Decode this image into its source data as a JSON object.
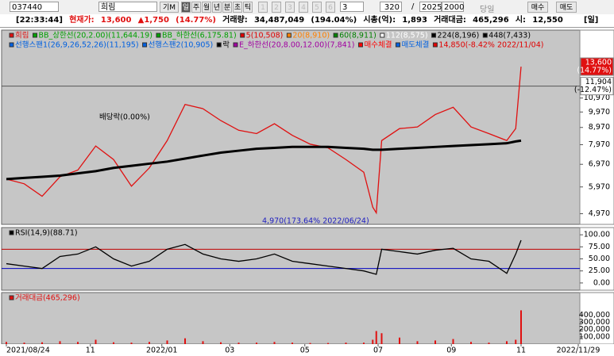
{
  "toolbar": {
    "code": "037440",
    "name": "희림",
    "chart_mode": "기M",
    "periods": [
      "일",
      "주",
      "월",
      "년",
      "분",
      "초",
      "틱"
    ],
    "slots": [
      "1",
      "2",
      "3",
      "4",
      "5",
      "6",
      "3"
    ],
    "count": "320",
    "range_sep": "/",
    "range": "2025",
    "zoom": "2000",
    "today": "당일",
    "buy": "매수",
    "sell": "매도"
  },
  "info": {
    "time": "[22:33:44]",
    "price_label": "현재가:",
    "price": "13,600",
    "change": "▲1,750",
    "change_pct": "(14.77%)",
    "volume_label": "거래량:",
    "volume": "34,487,049",
    "volume_pct": "(194.04%)",
    "cap_label": "시총(억):",
    "cap": "1,893",
    "amount_label": "거래대금:",
    "amount": "465,296",
    "open_label": "시:",
    "open": "12,550",
    "period": "[일]"
  },
  "chart_data": [
    {
      "type": "line",
      "scale": "log",
      "x": [
        0,
        10,
        20,
        30,
        40,
        50,
        60,
        70,
        80,
        90,
        100,
        110,
        120,
        130,
        140,
        150,
        160,
        170,
        180,
        190,
        200,
        205,
        207,
        210,
        220,
        230,
        240,
        250,
        260,
        270,
        280,
        285,
        288
      ],
      "xlim": [
        0,
        320
      ],
      "xticks": [
        {
          "value": 0,
          "label": "2021/08/24"
        },
        {
          "value": 47,
          "label": "11"
        },
        {
          "value": 87,
          "label": "2022/01"
        },
        {
          "value": 125,
          "label": "03"
        },
        {
          "value": 167,
          "label": "05"
        },
        {
          "value": 208,
          "label": "07"
        },
        {
          "value": 249,
          "label": "09"
        },
        {
          "value": 288,
          "label": "11"
        },
        {
          "value": 320,
          "label": "2022/11/29"
        }
      ],
      "series": [
        {
          "name": "희림",
          "color": "#e01010",
          "values": [
            6300,
            6100,
            5600,
            6400,
            6700,
            7900,
            7200,
            6000,
            6800,
            8200,
            10500,
            10200,
            9400,
            8800,
            8600,
            9200,
            8500,
            8000,
            7800,
            7200,
            6600,
            5200,
            5000,
            8200,
            8900,
            9000,
            9800,
            10300,
            9000,
            8600,
            8200,
            8900,
            13600
          ]
        },
        {
          "name": "224(8,196)",
          "color": "#000000",
          "values": [
            6300,
            6350,
            6400,
            6450,
            6550,
            6650,
            6800,
            6900,
            7000,
            7100,
            7250,
            7400,
            7550,
            7650,
            7750,
            7800,
            7850,
            7850,
            7850,
            7800,
            7750,
            7700,
            7700,
            7700,
            7750,
            7800,
            7850,
            7900,
            7950,
            8000,
            8050,
            8150,
            8196
          ]
        }
      ],
      "legend_extra": [
        {
          "text": "BB_상한선(20,2.00)(11,644.19)",
          "color": "#00a000"
        },
        {
          "text": "BB_하한선(6,175.81)",
          "color": "#00a000"
        },
        {
          "text": "5(10,508)",
          "color": "#e00000"
        },
        {
          "text": "20(8,910)",
          "color": "#ff8000"
        },
        {
          "text": "60(8,911)",
          "color": "#008000"
        },
        {
          "text": "112(8,575)",
          "color": "#ffffff"
        },
        {
          "text": "448(7,433)",
          "color": "#000000"
        },
        {
          "text": "선행스팬1(26,9,26,52,26)(11,195)",
          "color": "#0060e0"
        },
        {
          "text": "선행스팬2(10,905)",
          "color": "#0060e0"
        },
        {
          "text": "락",
          "color": "#000000"
        },
        {
          "text": "E_하한선(20,8.00,12.00)(7,841)",
          "color": "#a000a0"
        },
        {
          "text": "매수체결",
          "color": "#ff0000"
        },
        {
          "text": "매도체결",
          "color": "#0060e0"
        },
        {
          "text": "14,850(-8.42% 2022/11/04)",
          "color": "#e00000"
        }
      ],
      "annotations": [
        "배당락(0.00%)",
        "4,970(173.64% 2022/06/24)"
      ],
      "markers": [
        {
          "value": 13600,
          "label": "13,600",
          "note": "(14.77%)",
          "color": "#e01010",
          "line": false
        },
        {
          "value": 11904,
          "label": "11,904",
          "note": "(-12.47%)",
          "color": "#ffffff",
          "line": true
        }
      ],
      "ylim": [
        4620,
        17460
      ],
      "yticks": [
        {
          "value": 4970,
          "label": "4,970"
        },
        {
          "value": 5970,
          "label": "5,970"
        },
        {
          "value": 6970,
          "label": "6,970"
        },
        {
          "value": 7970,
          "label": "7,970"
        },
        {
          "value": 8970,
          "label": "8,970"
        },
        {
          "value": 9970,
          "label": "9,970"
        },
        {
          "value": 10970,
          "label": "10,970"
        }
      ]
    },
    {
      "type": "line",
      "x": [
        0,
        10,
        20,
        30,
        40,
        50,
        60,
        70,
        80,
        90,
        100,
        110,
        120,
        130,
        140,
        150,
        160,
        170,
        180,
        190,
        200,
        205,
        207,
        210,
        220,
        230,
        240,
        250,
        260,
        270,
        280,
        285,
        288
      ],
      "xlim": [
        0,
        320
      ],
      "series": [
        {
          "name": "RSI(14,9)(88.71)",
          "color": "#000000",
          "values": [
            40,
            35,
            30,
            55,
            60,
            75,
            50,
            35,
            45,
            70,
            80,
            60,
            50,
            45,
            50,
            60,
            45,
            40,
            35,
            30,
            25,
            20,
            18,
            70,
            65,
            60,
            68,
            72,
            50,
            45,
            20,
            60,
            88.71
          ]
        }
      ],
      "levels": [
        {
          "value": 70,
          "color": "#c00000"
        },
        {
          "value": 30,
          "color": "#0000c0"
        }
      ],
      "ylim": [
        -15,
        115
      ],
      "yticks": [
        {
          "value": 100,
          "label": "100.00"
        },
        {
          "value": 75,
          "label": "75.00"
        },
        {
          "value": 50,
          "label": "50.00"
        },
        {
          "value": 25,
          "label": "25.00"
        },
        {
          "value": 0,
          "label": "0.00"
        }
      ]
    },
    {
      "type": "bar",
      "x": [
        0,
        10,
        20,
        30,
        40,
        50,
        60,
        70,
        80,
        90,
        100,
        110,
        120,
        130,
        140,
        150,
        160,
        170,
        180,
        190,
        200,
        205,
        207,
        210,
        220,
        230,
        240,
        250,
        260,
        270,
        280,
        285,
        288
      ],
      "xlim": [
        0,
        320
      ],
      "series": [
        {
          "name": "거래대금(465,296)",
          "color": "#e01010",
          "values": [
            30000,
            20000,
            25000,
            40000,
            30000,
            60000,
            25000,
            20000,
            30000,
            50000,
            80000,
            40000,
            25000,
            20000,
            20000,
            30000,
            20000,
            15000,
            15000,
            20000,
            20000,
            60000,
            180000,
            150000,
            90000,
            40000,
            50000,
            70000,
            30000,
            20000,
            40000,
            60000,
            465296
          ]
        }
      ],
      "ylim": [
        0,
        710000
      ],
      "yticks": [
        {
          "value": 400000,
          "label": "400,000"
        },
        {
          "value": 300000,
          "label": "300,000"
        },
        {
          "value": 200000,
          "label": "200,000"
        },
        {
          "value": 100000,
          "label": "100,000"
        }
      ]
    }
  ]
}
